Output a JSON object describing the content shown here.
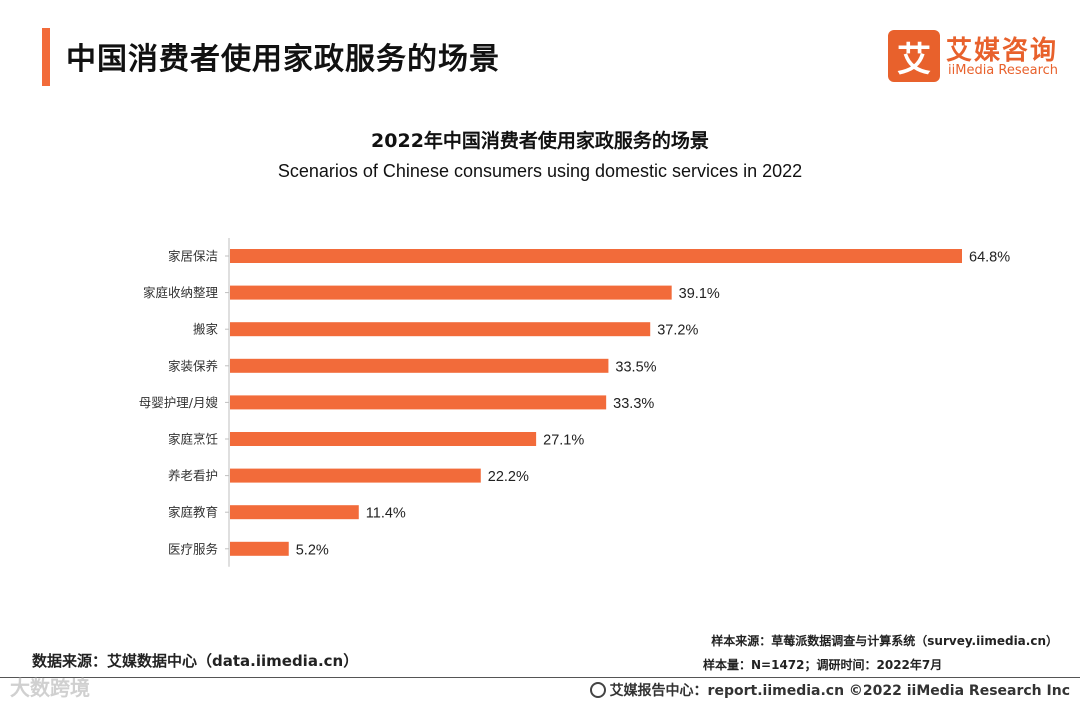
{
  "header": {
    "title": "中国消费者使用家政服务的场景",
    "logo_mark": "艾",
    "logo_cn": "艾媒咨询",
    "logo_en": "iiMedia Research"
  },
  "chart_data": {
    "type": "bar",
    "orientation": "horizontal",
    "title": "2022年中国消费者使用家政服务的场景",
    "subtitle": "Scenarios of Chinese consumers using domestic services in 2022",
    "categories": [
      "家居保洁",
      "家庭收纳整理",
      "搬家",
      "家装保养",
      "母婴护理/月嫂",
      "家庭烹饪",
      "养老看护",
      "家庭教育",
      "医疗服务"
    ],
    "values": [
      64.8,
      39.1,
      37.2,
      33.5,
      33.3,
      27.1,
      22.2,
      11.4,
      5.2
    ],
    "value_labels": [
      "64.8%",
      "39.1%",
      "37.2%",
      "33.5%",
      "33.3%",
      "27.1%",
      "22.2%",
      "11.4%",
      "5.2%"
    ],
    "unit": "%",
    "xlim": [
      0,
      64.8
    ],
    "bar_color": "#f26b3a"
  },
  "footer": {
    "source_left": "数据来源：艾媒数据中心（data.iimedia.cn）",
    "sample_source": "样本来源：草莓派数据调查与计算系统（survey.iimedia.cn）",
    "sample_size": "样本量：N=1472；调研时间：2022年7月",
    "watermark": "大数跨境",
    "report_center": "艾媒报告中心：report.iimedia.cn   ©2022  iiMedia Research  Inc"
  }
}
